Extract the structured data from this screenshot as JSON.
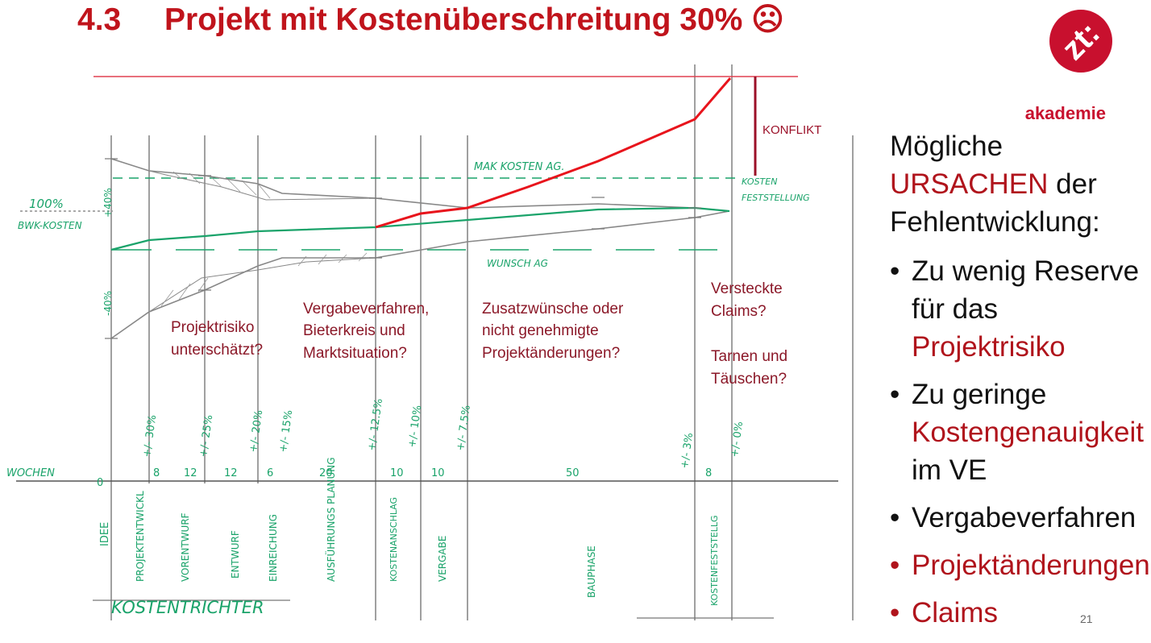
{
  "slide": {
    "number_label": "4.3",
    "title_text": "Projekt mit Kostenüberschreitung 30% ☹",
    "page_number": "21"
  },
  "logo": {
    "mark": "zt:",
    "word": "akademie",
    "color": "#c8102e"
  },
  "side_panel": {
    "intro_before": "Mögliche",
    "intro_highlight": "URSACHEN",
    "intro_after": "der Fehlentwicklung:",
    "bullets": [
      {
        "plain": "Zu wenig Reserve für das",
        "highlight": "Projektrisiko",
        "red": false
      },
      {
        "plain": "Zu geringe",
        "highlight": "Kostengenauigkeit",
        "tail": "im VE",
        "red": false
      },
      {
        "plain": "Vergabeverfahren",
        "red": false
      },
      {
        "plain": "Projektänderungen",
        "red": true
      },
      {
        "plain": "Claims",
        "red": true
      }
    ],
    "bullet_char": "•"
  },
  "sketch": {
    "pct_100": "100%",
    "bwk_kosten": "BWK-KOSTEN",
    "plus40": "+40%",
    "minus40": "-40%",
    "max_kosten": "MAK KOSTEN AG.",
    "wunsch": "WUNSCH AG",
    "kosten": "KOSTEN",
    "feststellung": "FESTSTELLUNG",
    "konflikt": "KONFLIKT",
    "wochen": "WOCHEN",
    "kostentrichter": "KOSTENTRICHTER",
    "week_values": [
      "0",
      "8",
      "12",
      "12",
      "6",
      "20",
      "10",
      "10",
      "50",
      "8"
    ],
    "accuracy": [
      "+/- 30%",
      "+/- 25%",
      "+/- 20%",
      "+/- 15%",
      "+/- 12.5%",
      "+/- 10%",
      "+/- 7.5%",
      "+/- 3%",
      "+/- 0%"
    ],
    "phases": [
      "IDEE",
      "PROJEKTENTWICKL",
      "VORENTWURF",
      "ENTWURF",
      "EINREICHUNG",
      "AUSFÜHRUNGS PLANUNG",
      "KOSTENANSCHLAG",
      "VERGABE",
      "BAUPHASE",
      "KOSTENFESTSTELLG"
    ],
    "annotations": {
      "risk": [
        "Projektrisiko",
        "unterschätzt?"
      ],
      "vergabe": [
        "Vergabeverfahren,",
        "Bieterkreis und",
        "Marktsituation?"
      ],
      "zusatz": [
        "Zusatzwünsche oder",
        "nicht genehmigte",
        "Projektänderungen?"
      ],
      "claims": [
        "Versteckte",
        "Claims?",
        "",
        "Tarnen und",
        "Täuschen?"
      ]
    },
    "colors": {
      "green": "#1aa36a",
      "red": "#e8141c",
      "dark_red": "#9b1028",
      "grey": "#888888"
    }
  }
}
